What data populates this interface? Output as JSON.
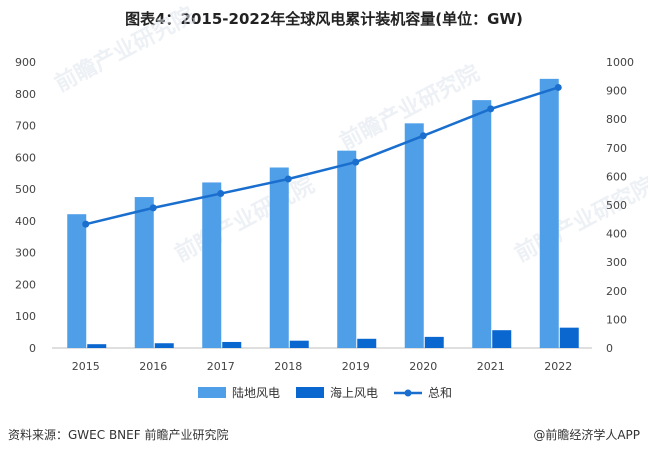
{
  "footer": {
    "source": "资料来源：GWEC  BNEF 前瞻产业研究院",
    "credit": "@前瞻经济学人APP"
  },
  "watermark": "前瞻产业研究院",
  "colors": {
    "onshore": "#4f9ee8",
    "offshore": "#0b67d0",
    "total": "#1a6fce"
  },
  "chart_data": {
    "type": "bar",
    "title": "图表4：2015-2022年全球风电累计装机容量(单位：GW)",
    "categories": [
      "2015",
      "2016",
      "2017",
      "2018",
      "2019",
      "2020",
      "2021",
      "2022"
    ],
    "series": [
      {
        "name": "陆地风电",
        "type": "bar",
        "axis": "left",
        "values": [
          421,
          475,
          521,
          568,
          621,
          707,
          780,
          847
        ]
      },
      {
        "name": "海上风电",
        "type": "bar",
        "axis": "left",
        "values": [
          12,
          15,
          19,
          23,
          29,
          35,
          56,
          64
        ]
      },
      {
        "name": "总和",
        "type": "line",
        "axis": "right",
        "values": [
          433,
          490,
          540,
          591,
          650,
          742,
          836,
          911
        ]
      }
    ],
    "y_left": {
      "min": 0,
      "max": 900,
      "ticks": [
        "0",
        "100",
        "200",
        "300",
        "400",
        "500",
        "600",
        "700",
        "800",
        "900"
      ]
    },
    "y_right": {
      "min": 0,
      "max": 1000,
      "ticks": [
        "0",
        "100",
        "200",
        "300",
        "400",
        "500",
        "600",
        "700",
        "800",
        "900",
        "1000"
      ]
    },
    "legend": [
      "陆地风电",
      "海上风电",
      "总和"
    ],
    "legend_position": "bottom",
    "grid": false
  }
}
